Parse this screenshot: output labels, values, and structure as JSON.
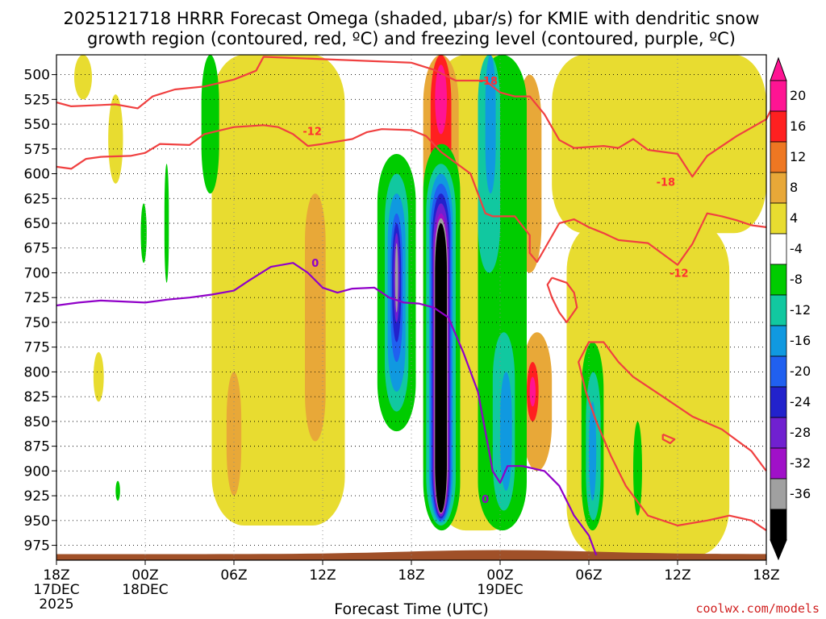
{
  "chart_data": {
    "type": "heatmap",
    "title_line1": "2025121718 HRRR Forecast Omega (shaded, μbar/s) for KMIE with dendritic snow",
    "title_line2": "growth region (contoured, red, ºC) and freezing level (contoured, purple, ºC)",
    "xlabel": "Forecast Time (UTC)",
    "watermark": "coolwx.com/models",
    "x_range_hours": [
      0,
      48
    ],
    "y_range_hpa": [
      480,
      990
    ],
    "x_ticks": [
      {
        "h": 0,
        "label": "18Z",
        "sub": "17DEC",
        "sub2": "2025"
      },
      {
        "h": 6,
        "label": "00Z",
        "sub": "18DEC",
        "sub2": ""
      },
      {
        "h": 12,
        "label": "06Z",
        "sub": "",
        "sub2": ""
      },
      {
        "h": 18,
        "label": "12Z",
        "sub": "",
        "sub2": ""
      },
      {
        "h": 24,
        "label": "18Z",
        "sub": "",
        "sub2": ""
      },
      {
        "h": 30,
        "label": "00Z",
        "sub": "19DEC",
        "sub2": ""
      },
      {
        "h": 36,
        "label": "06Z",
        "sub": "",
        "sub2": ""
      },
      {
        "h": 42,
        "label": "12Z",
        "sub": "",
        "sub2": ""
      },
      {
        "h": 48,
        "label": "18Z",
        "sub": "",
        "sub2": ""
      }
    ],
    "y_ticks": [
      500,
      525,
      550,
      575,
      600,
      625,
      650,
      675,
      700,
      725,
      750,
      775,
      800,
      825,
      850,
      875,
      900,
      925,
      950,
      975
    ],
    "colorbar": [
      {
        "label": "20",
        "color": "#ff1493"
      },
      {
        "label": "16",
        "color": "#ff2020"
      },
      {
        "label": "12",
        "color": "#ee7722"
      },
      {
        "label": "8",
        "color": "#e8a838"
      },
      {
        "label": "4",
        "color": "#e8dc30"
      },
      {
        "label": "-4",
        "color": "#ffffff"
      },
      {
        "label": "-8",
        "color": "#00cc00"
      },
      {
        "label": "-12",
        "color": "#11c8a0"
      },
      {
        "label": "-16",
        "color": "#1099e0"
      },
      {
        "label": "-20",
        "color": "#2060f0"
      },
      {
        "label": "-24",
        "color": "#2222cc"
      },
      {
        "label": "-28",
        "color": "#7020d0"
      },
      {
        "label": "-32",
        "color": "#a010c8"
      },
      {
        "label": "-36",
        "color": "#a0a0a0"
      },
      {
        "label": "",
        "color": "#000000"
      }
    ],
    "colorbar_top_color": "#ff1493",
    "colorbar_bottom_color": "#000000",
    "omega_regions": [
      {
        "color": "#e8dc30",
        "h": [
          10.5,
          19.5
        ],
        "p": [
          480,
          955
        ]
      },
      {
        "color": "#e8dc30",
        "h": [
          25.5,
          31.5
        ],
        "p": [
          480,
          960
        ]
      },
      {
        "color": "#e8dc30",
        "h": [
          33.5,
          48.0
        ],
        "p": [
          480,
          660
        ]
      },
      {
        "color": "#e8dc30",
        "h": [
          34.5,
          45.5
        ],
        "p": [
          650,
          985
        ]
      },
      {
        "color": "#e8dc30",
        "h": [
          1.2,
          2.4
        ],
        "p": [
          480,
          525
        ]
      },
      {
        "color": "#e8dc30",
        "h": [
          3.5,
          4.5
        ],
        "p": [
          520,
          610
        ]
      },
      {
        "color": "#e8dc30",
        "h": [
          2.5,
          3.2
        ],
        "p": [
          780,
          830
        ]
      },
      {
        "color": "#e8a838",
        "h": [
          11.5,
          12.5
        ],
        "p": [
          800,
          925
        ]
      },
      {
        "color": "#e8a838",
        "h": [
          16.8,
          18.2
        ],
        "p": [
          620,
          870
        ]
      },
      {
        "color": "#e8a838",
        "h": [
          24.8,
          27.2
        ],
        "p": [
          480,
          940
        ]
      },
      {
        "color": "#e8a838",
        "h": [
          29.3,
          30.7
        ],
        "p": [
          620,
          740
        ]
      },
      {
        "color": "#e8a838",
        "h": [
          31.2,
          32.8
        ],
        "p": [
          500,
          700
        ]
      },
      {
        "color": "#e8a838",
        "h": [
          31.5,
          33.5
        ],
        "p": [
          760,
          900
        ]
      },
      {
        "color": "#ff2020",
        "h": [
          25.3,
          26.7
        ],
        "p": [
          480,
          620
        ]
      },
      {
        "color": "#ff2020",
        "h": [
          31.8,
          32.6
        ],
        "p": [
          790,
          850
        ]
      },
      {
        "color": "#ff1493",
        "h": [
          25.6,
          26.4
        ],
        "p": [
          490,
          560
        ]
      },
      {
        "color": "#ff1493",
        "h": [
          32.0,
          32.4
        ],
        "p": [
          805,
          835
        ]
      },
      {
        "color": "#00cc00",
        "h": [
          9.8,
          11.0
        ],
        "p": [
          480,
          620
        ]
      },
      {
        "color": "#00cc00",
        "h": [
          5.7,
          6.1
        ],
        "p": [
          630,
          690
        ]
      },
      {
        "color": "#00cc00",
        "h": [
          7.3,
          7.6
        ],
        "p": [
          590,
          710
        ]
      },
      {
        "color": "#00cc00",
        "h": [
          4.0,
          4.3
        ],
        "p": [
          910,
          930
        ]
      },
      {
        "color": "#00cc00",
        "h": [
          24.8,
          27.3
        ],
        "p": [
          570,
          960
        ]
      },
      {
        "color": "#00cc00",
        "h": [
          21.7,
          24.3
        ],
        "p": [
          580,
          860
        ]
      },
      {
        "color": "#00cc00",
        "h": [
          28.5,
          31.8
        ],
        "p": [
          480,
          960
        ]
      },
      {
        "color": "#00cc00",
        "h": [
          35.5,
          37.0
        ],
        "p": [
          770,
          960
        ]
      },
      {
        "color": "#00cc00",
        "h": [
          39.0,
          39.6
        ],
        "p": [
          850,
          945
        ]
      },
      {
        "color": "#11c8a0",
        "h": [
          28.5,
          30.0
        ],
        "p": [
          480,
          700
        ]
      },
      {
        "color": "#11c8a0",
        "h": [
          29.5,
          31.0
        ],
        "p": [
          760,
          940
        ]
      },
      {
        "color": "#11c8a0",
        "h": [
          35.8,
          36.8
        ],
        "p": [
          800,
          950
        ]
      },
      {
        "color": "#11c8a0",
        "h": [
          22.2,
          23.8
        ],
        "p": [
          600,
          840
        ]
      },
      {
        "color": "#11c8a0",
        "h": [
          25.0,
          27.0
        ],
        "p": [
          590,
          955
        ]
      },
      {
        "color": "#1099e0",
        "h": [
          29.0,
          29.7
        ],
        "p": [
          480,
          620
        ]
      },
      {
        "color": "#1099e0",
        "h": [
          30.0,
          30.8
        ],
        "p": [
          800,
          920
        ]
      },
      {
        "color": "#1099e0",
        "h": [
          36.0,
          36.5
        ],
        "p": [
          830,
          930
        ]
      },
      {
        "color": "#1099e0",
        "h": [
          22.4,
          23.6
        ],
        "p": [
          620,
          820
        ]
      },
      {
        "color": "#1099e0",
        "h": [
          25.2,
          26.8
        ],
        "p": [
          600,
          952
        ]
      },
      {
        "color": "#2060f0",
        "h": [
          22.6,
          23.4
        ],
        "p": [
          640,
          790
        ]
      },
      {
        "color": "#2060f0",
        "h": [
          25.3,
          26.7
        ],
        "p": [
          610,
          950
        ]
      },
      {
        "color": "#2222cc",
        "h": [
          22.7,
          23.3
        ],
        "p": [
          650,
          770
        ]
      },
      {
        "color": "#2222cc",
        "h": [
          25.4,
          26.6
        ],
        "p": [
          620,
          948
        ]
      },
      {
        "color": "#7020d0",
        "h": [
          22.8,
          23.2
        ],
        "p": [
          660,
          750
        ]
      },
      {
        "color": "#7020d0",
        "h": [
          25.45,
          26.55
        ],
        "p": [
          630,
          946
        ]
      },
      {
        "color": "#a010c8",
        "h": [
          25.5,
          26.5
        ],
        "p": [
          640,
          944
        ]
      },
      {
        "color": "#a0a0a0",
        "h": [
          22.9,
          23.1
        ],
        "p": [
          670,
          740
        ]
      },
      {
        "color": "#a0a0a0",
        "h": [
          25.55,
          26.45
        ],
        "p": [
          645,
          943
        ]
      },
      {
        "color": "#000000",
        "h": [
          25.6,
          26.4
        ],
        "p": [
          650,
          942
        ]
      }
    ],
    "contours": [
      {
        "series": "dgz_upper",
        "color": "#f04040",
        "label": "-18",
        "points": [
          [
            0,
            528
          ],
          [
            1,
            532
          ],
          [
            4,
            530
          ],
          [
            5.5,
            534
          ],
          [
            6.5,
            522
          ],
          [
            8,
            515
          ],
          [
            10,
            512
          ],
          [
            12,
            505
          ],
          [
            13.5,
            496
          ],
          [
            14,
            482
          ],
          [
            24,
            488
          ],
          [
            25.5,
            495
          ],
          [
            27,
            506
          ],
          [
            29,
            506
          ],
          [
            30,
            518
          ],
          [
            31,
            522
          ],
          [
            32,
            522
          ],
          [
            33,
            540
          ],
          [
            34,
            566
          ],
          [
            35,
            574
          ],
          [
            37,
            572
          ],
          [
            38,
            574
          ],
          [
            39,
            565
          ],
          [
            40,
            576
          ],
          [
            42,
            580
          ],
          [
            43,
            603
          ],
          [
            44,
            582
          ],
          [
            46,
            562
          ],
          [
            48,
            545
          ],
          [
            48.5,
            530
          ]
        ]
      },
      {
        "series": "dgz_lower",
        "color": "#f04040",
        "label": "-12",
        "points": [
          [
            0,
            593
          ],
          [
            1,
            595
          ],
          [
            2,
            585
          ],
          [
            3,
            583
          ],
          [
            5,
            582
          ],
          [
            6,
            579
          ],
          [
            7,
            570
          ],
          [
            9,
            571
          ],
          [
            10,
            560
          ],
          [
            12,
            553
          ],
          [
            14,
            551
          ],
          [
            15,
            553
          ],
          [
            16,
            560
          ],
          [
            17,
            572
          ],
          [
            18,
            570
          ],
          [
            20,
            565
          ],
          [
            21,
            558
          ],
          [
            22,
            555
          ],
          [
            24,
            556
          ],
          [
            25,
            562
          ],
          [
            26,
            578
          ],
          [
            28,
            600
          ],
          [
            29,
            640
          ],
          [
            29.5,
            643
          ],
          [
            31,
            643
          ],
          [
            32,
            662
          ],
          [
            32,
            680
          ],
          [
            32.5,
            689
          ],
          [
            33,
            676
          ],
          [
            34,
            650
          ],
          [
            35,
            646
          ],
          [
            36,
            654
          ],
          [
            37,
            660
          ],
          [
            38,
            667
          ],
          [
            40,
            670
          ],
          [
            41,
            681
          ],
          [
            42,
            692
          ],
          [
            43,
            671
          ],
          [
            44,
            640
          ],
          [
            45,
            643
          ],
          [
            46,
            647
          ],
          [
            47,
            652
          ],
          [
            48,
            654
          ]
        ]
      },
      {
        "series": "dgz_loop",
        "color": "#f04040",
        "label": "",
        "points": [
          [
            33.5,
            705
          ],
          [
            34.5,
            710
          ],
          [
            35,
            720
          ],
          [
            35.2,
            735
          ],
          [
            34.5,
            750
          ],
          [
            34,
            740
          ],
          [
            33.5,
            725
          ],
          [
            33.2,
            712
          ],
          [
            33.5,
            705
          ]
        ]
      },
      {
        "series": "dgz_bottom",
        "color": "#f04040",
        "label": "",
        "points": [
          [
            48,
            960
          ],
          [
            47,
            950
          ],
          [
            45.5,
            945
          ],
          [
            44,
            950
          ],
          [
            42,
            955
          ],
          [
            40,
            945
          ],
          [
            38.5,
            915
          ],
          [
            37.5,
            885
          ],
          [
            36.5,
            850
          ],
          [
            35.8,
            820
          ],
          [
            35.3,
            790
          ],
          [
            36,
            770
          ],
          [
            37,
            770
          ],
          [
            38,
            790
          ],
          [
            39,
            805
          ],
          [
            41,
            825
          ],
          [
            43,
            845
          ],
          [
            45,
            858
          ],
          [
            47,
            880
          ],
          [
            48,
            900
          ]
        ]
      },
      {
        "series": "dgz_small",
        "color": "#f04040",
        "label": "",
        "points": [
          [
            41,
            863
          ],
          [
            41.8,
            868
          ],
          [
            41.5,
            872
          ],
          [
            41,
            868
          ],
          [
            41,
            863
          ]
        ]
      },
      {
        "series": "freezing_level",
        "color": "#9000c8",
        "label": "0",
        "points": [
          [
            0,
            733
          ],
          [
            1.5,
            730
          ],
          [
            3,
            728
          ],
          [
            4.5,
            729
          ],
          [
            6,
            730
          ],
          [
            7.5,
            727
          ],
          [
            9,
            725
          ],
          [
            10.5,
            722
          ],
          [
            12,
            718
          ],
          [
            13,
            708
          ],
          [
            14.5,
            694
          ],
          [
            16,
            690
          ],
          [
            17,
            700
          ],
          [
            18,
            715
          ],
          [
            19,
            720
          ],
          [
            20,
            716
          ],
          [
            21.5,
            715
          ],
          [
            22.5,
            725
          ],
          [
            23.5,
            730
          ],
          [
            24.5,
            731
          ],
          [
            25.5,
            735
          ],
          [
            26.5,
            745
          ],
          [
            27.5,
            780
          ],
          [
            28.5,
            820
          ],
          [
            29,
            860
          ],
          [
            29.5,
            900
          ],
          [
            30,
            912
          ],
          [
            30.5,
            895
          ],
          [
            31.5,
            895
          ],
          [
            33,
            900
          ],
          [
            34,
            915
          ],
          [
            35,
            945
          ],
          [
            36,
            965
          ],
          [
            36.5,
            985
          ]
        ]
      }
    ],
    "contour_labels": [
      {
        "text": "-18",
        "h": 29.2,
        "p": 506,
        "color": "#ff3030"
      },
      {
        "text": "-12",
        "h": 17.3,
        "p": 557,
        "color": "#ff3030"
      },
      {
        "text": "-18",
        "h": 41.2,
        "p": 608,
        "color": "#ff3030"
      },
      {
        "text": "-12",
        "h": 42.1,
        "p": 700,
        "color": "#ff3030"
      },
      {
        "text": "0",
        "h": 17.5,
        "p": 690,
        "color": "#9000c8"
      },
      {
        "text": "0",
        "h": 29.0,
        "p": 928,
        "color": "#9000c8"
      }
    ],
    "terrain_color": "#a05028"
  }
}
